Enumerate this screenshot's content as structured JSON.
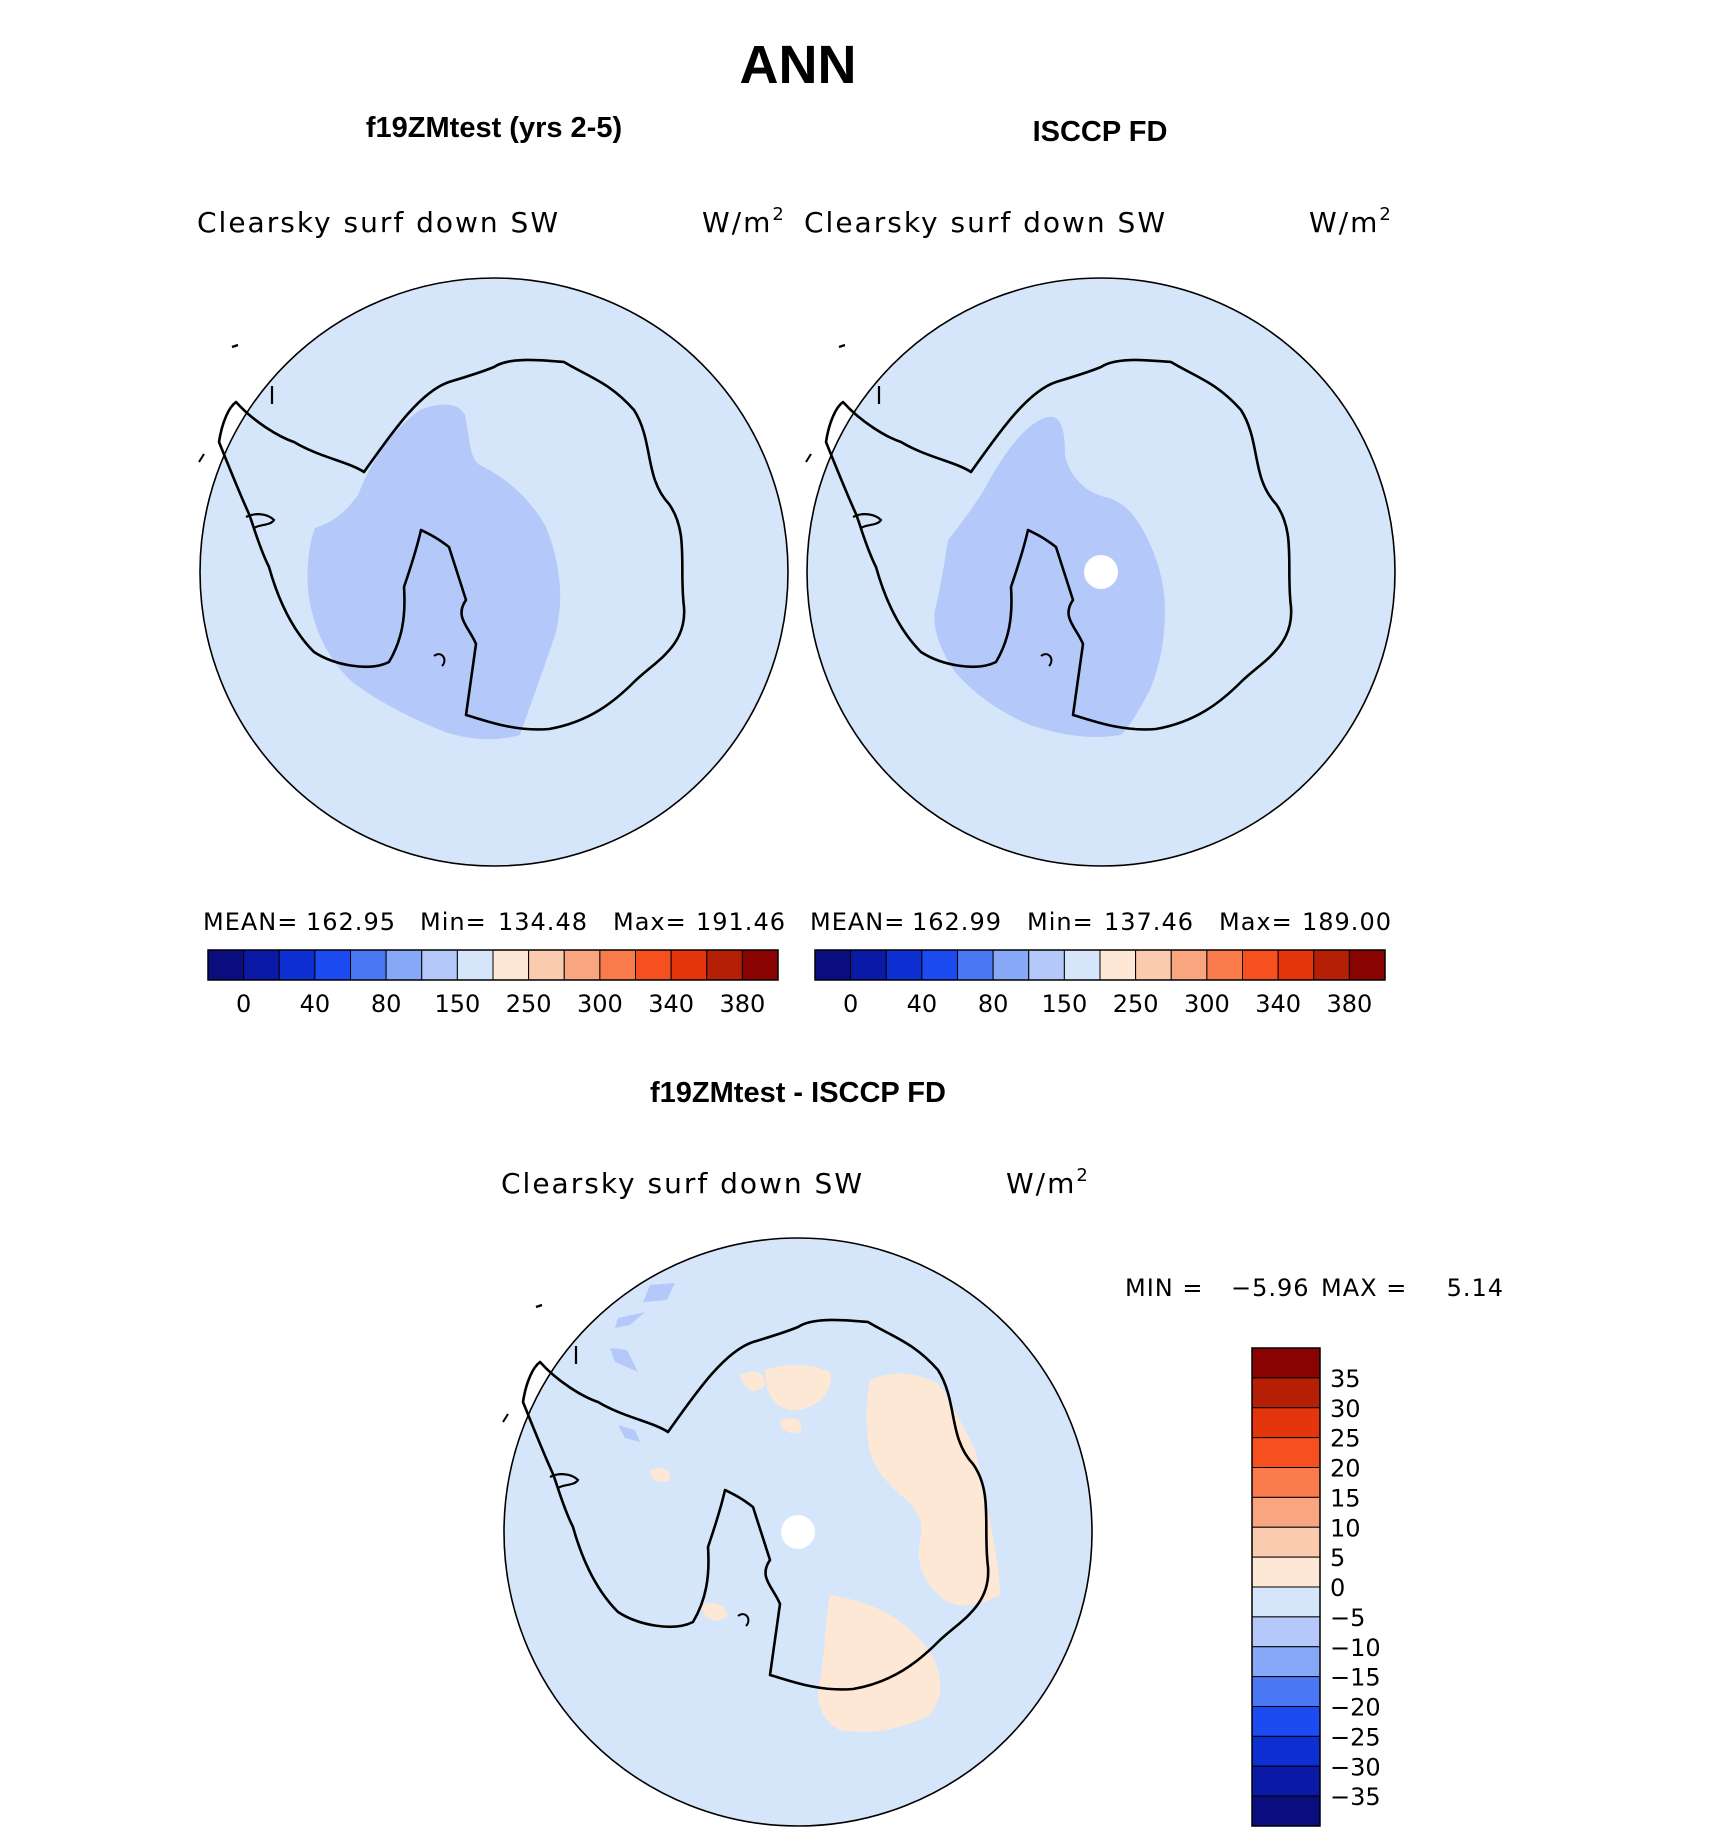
{
  "figure": {
    "title": "ANN",
    "unit_prefix": "W/m",
    "unit_exp": "2"
  },
  "panels": [
    {
      "id": "model",
      "title": "f19ZMtest (yrs 2-5)",
      "variable": "Clearsky surf down SW",
      "stats": {
        "mean_label": "MEAN=",
        "mean": "162.95",
        "min_label": "Min=",
        "min": "134.48",
        "max_label": "Max=",
        "max": "191.46"
      }
    },
    {
      "id": "obs",
      "title": "ISCCP FD",
      "variable": "Clearsky surf down SW",
      "stats": {
        "mean_label": "MEAN=",
        "mean": "162.99",
        "min_label": "Min=",
        "min": "137.46",
        "max_label": "Max=",
        "max": "189.00"
      }
    },
    {
      "id": "diff",
      "title": "f19ZMtest - ISCCP FD",
      "variable": "Clearsky surf down SW",
      "stats": {
        "min_label": "MIN =",
        "min": "−5.96",
        "max_label": "MAX =",
        "max": "5.14"
      }
    }
  ],
  "colorbars": {
    "absolute": {
      "colors": [
        "#0a0d7e",
        "#0a19a6",
        "#0d2fd2",
        "#1c4bf2",
        "#4a78f5",
        "#87a7f7",
        "#b5c8fa",
        "#d6e6fa",
        "#fde8d6",
        "#fbcbb0",
        "#f9a57f",
        "#f97a4b",
        "#f6501f",
        "#e4350c",
        "#b51f06",
        "#8a0303"
      ],
      "labels": [
        "0",
        "40",
        "80",
        "150",
        "250",
        "300",
        "340",
        "380"
      ]
    },
    "difference": {
      "colors": [
        "#8a0303",
        "#b51f06",
        "#e4350c",
        "#f6501f",
        "#f97a4b",
        "#f9a57f",
        "#fbcbb0",
        "#fde8d6",
        "#d6e6fa",
        "#b5c8fa",
        "#87a7f7",
        "#4a78f5",
        "#1c4bf2",
        "#0d2fd2",
        "#0a19a6",
        "#0a0d7e"
      ],
      "labels": [
        "35",
        "30",
        "25",
        "20",
        "15",
        "10",
        "5",
        "0",
        "−5",
        "−10",
        "−15",
        "−20",
        "−25",
        "−30",
        "−35"
      ]
    }
  },
  "colors": {
    "ocean_fill": "#d6e6fa",
    "low_fill": "#b5c8fa",
    "positive_fill": "#fde8d6",
    "missing_fill": "#ffffff",
    "outline": "#000000"
  }
}
